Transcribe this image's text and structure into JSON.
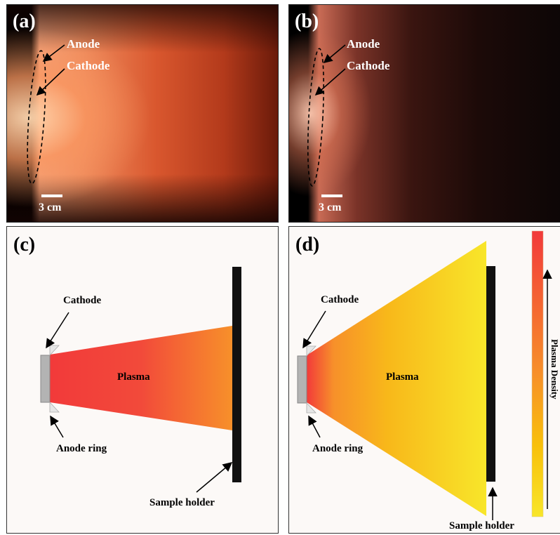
{
  "panel_a": {
    "label": "(a)",
    "anode": "Anode",
    "cathode": "Cathode",
    "scale": "3 cm"
  },
  "panel_b": {
    "label": "(b)",
    "anode": "Anode",
    "cathode": "Cathode",
    "scale": "3 cm"
  },
  "panel_c": {
    "label": "(c)",
    "cathode": "Cathode",
    "plasma": "Plasma",
    "anode_ring": "Anode ring",
    "sample_holder": "Sample holder"
  },
  "panel_d": {
    "label": "(d)",
    "cathode": "Cathode",
    "plasma": "Plasma",
    "anode_ring": "Anode ring",
    "sample_holder": "Sample holder",
    "colorbar_label": "Plasma Density"
  },
  "colors": {
    "plasma_red": "#f23a3a",
    "plasma_orange": "#f7902a",
    "plasma_yellow": "#f8e62a",
    "holder": "#111111"
  }
}
